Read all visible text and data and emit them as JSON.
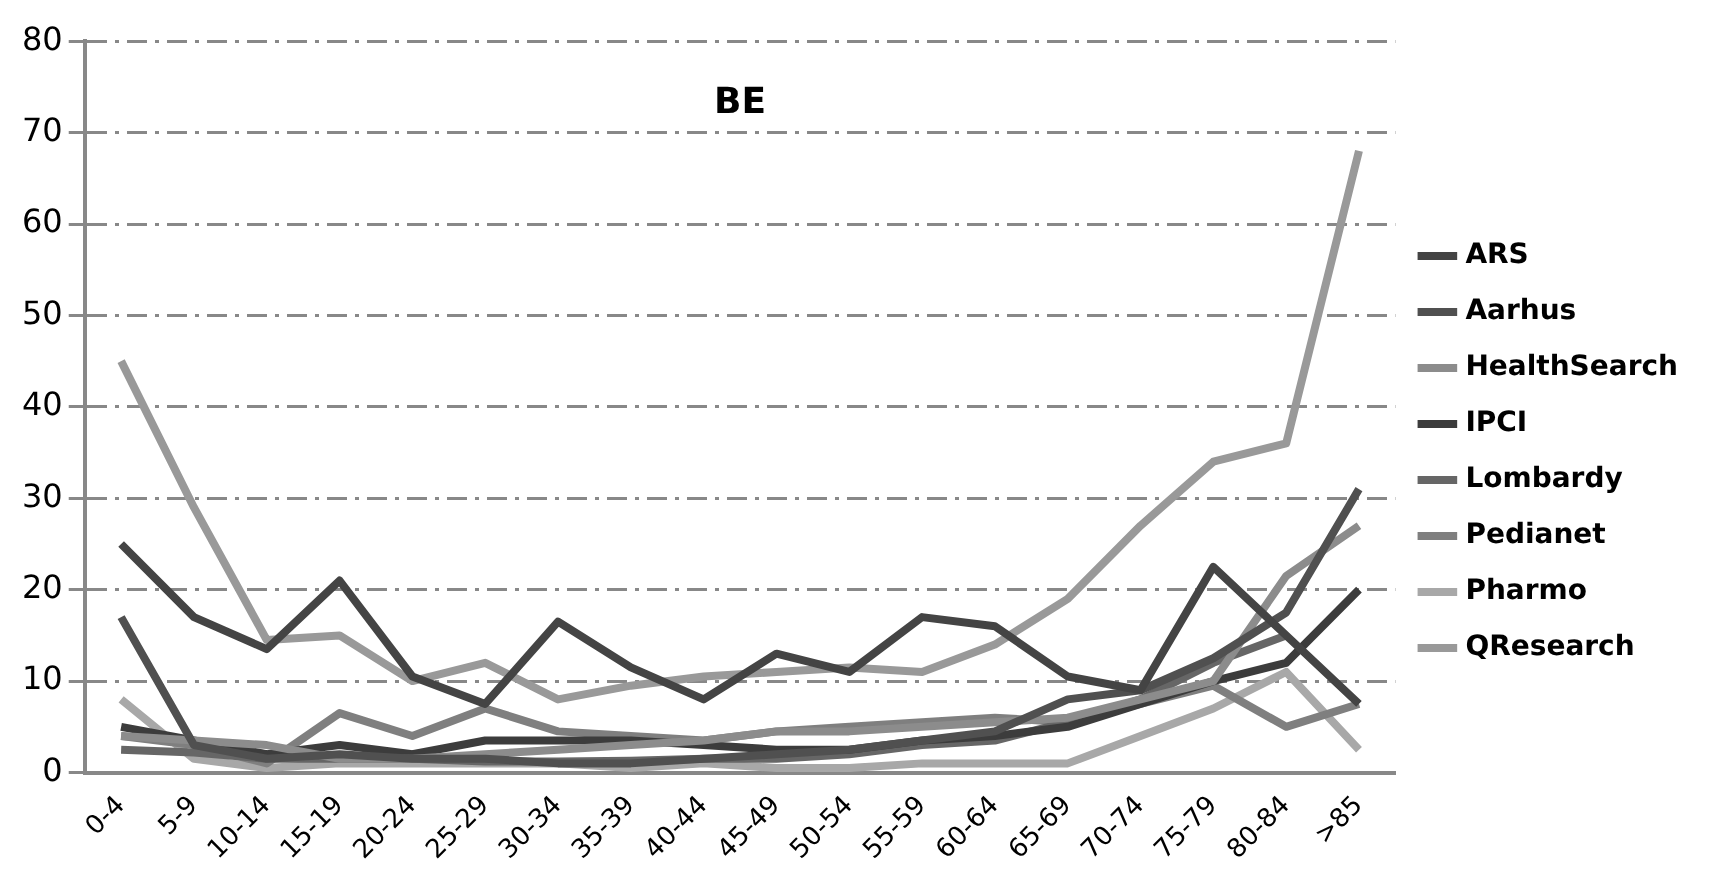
{
  "chart_data": {
    "type": "line",
    "title": "BE",
    "categories": [
      "0-4",
      "5-9",
      "10-14",
      "15-19",
      "20-24",
      "25-29",
      "30-34",
      "35-39",
      "40-44",
      "45-49",
      "50-54",
      "55-59",
      "60-64",
      "65-69",
      "70-74",
      "75-79",
      "80-84",
      ">85"
    ],
    "series": [
      {
        "name": "ARS",
        "color": "#444444",
        "values": [
          25,
          17,
          13.5,
          21,
          10.5,
          7.5,
          16.5,
          11.5,
          8,
          13,
          11,
          17,
          16,
          10.5,
          9,
          22.5,
          15,
          7.5
        ]
      },
      {
        "name": "Aarhus",
        "color": "#505050",
        "values": [
          17,
          3,
          1.5,
          2,
          1.5,
          1.5,
          1,
          1,
          1.5,
          2,
          2.5,
          3.5,
          4.5,
          8,
          9,
          12.5,
          17.5,
          31
        ]
      },
      {
        "name": "HealthSearch",
        "color": "#8c8c8c",
        "values": [
          4,
          3.5,
          3,
          1.5,
          1.5,
          2,
          2.5,
          3,
          3.5,
          4.5,
          4.5,
          5,
          5.5,
          6,
          8,
          10,
          21.5,
          27
        ]
      },
      {
        "name": "IPCI",
        "color": "#3c3c3c",
        "values": [
          5,
          3.5,
          2,
          3,
          2,
          3.5,
          3.5,
          3.5,
          3,
          2.5,
          2.5,
          3.5,
          4,
          5,
          7.5,
          10,
          12,
          20
        ]
      },
      {
        "name": "Lombardy",
        "color": "#666666",
        "values": [
          2.5,
          2.2,
          1.5,
          1.5,
          1.5,
          1.2,
          1.2,
          1.3,
          1.5,
          1.5,
          2,
          3,
          3.5,
          5.5,
          8,
          12,
          15,
          null
        ]
      },
      {
        "name": "Pedianet",
        "color": "#7f7f7f",
        "values": [
          4,
          3,
          1,
          6.5,
          4,
          7,
          4.5,
          4,
          3.5,
          4.5,
          5,
          5.5,
          6,
          5.5,
          7.5,
          9.5,
          5,
          7.5
        ]
      },
      {
        "name": "Pharmo",
        "color": "#a8a8a8",
        "values": [
          8,
          1.5,
          0.5,
          1,
          1,
          1,
          1,
          0.5,
          1,
          0.5,
          0.5,
          1,
          1,
          1,
          4,
          7,
          11,
          2.5
        ]
      },
      {
        "name": "QResearch",
        "color": "#999999",
        "values": [
          45,
          29,
          14.5,
          15,
          10,
          12,
          8,
          9.5,
          10.5,
          11,
          11.5,
          11,
          14,
          19,
          27,
          34,
          36,
          68
        ]
      }
    ],
    "ylim": [
      0,
      80
    ],
    "yticks": [
      0,
      10,
      20,
      30,
      40,
      50,
      60,
      70,
      80
    ],
    "grid": "y",
    "legend": "right",
    "marker": "none"
  }
}
